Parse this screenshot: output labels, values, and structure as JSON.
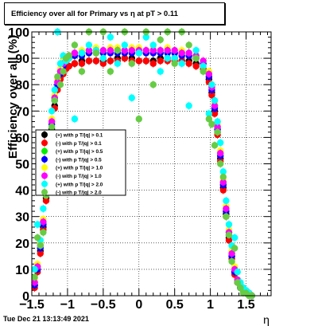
{
  "header": {
    "title": "Efficiency over all for Primary vs   η at pT > 0.11"
  },
  "footer": {
    "timestamp": "Tue Dec 21 13:13:49 2021"
  },
  "chart_data": {
    "type": "scatter",
    "title": "Efficiency over all for Primary vs   η at pT > 0.11",
    "xlabel": "η",
    "ylabel": "Efficiency over all (%)",
    "xlim": [
      -1.5,
      1.85
    ],
    "ylim": [
      0,
      100
    ],
    "x_ticks": [
      -1.5,
      -1,
      -0.5,
      0,
      0.5,
      1,
      1.5
    ],
    "x_tick_labels": [
      "−1.5",
      "−1",
      "−0.5",
      "0",
      "0.5",
      "1",
      "1.5"
    ],
    "y_ticks": [
      0,
      10,
      20,
      30,
      40,
      50,
      60,
      70,
      80,
      90,
      100
    ],
    "y_tick_labels": [
      "0",
      "10",
      "20",
      "30",
      "40",
      "50",
      "60",
      "70",
      "80",
      "90",
      "100"
    ],
    "grid": true,
    "legend_position": "left-middle",
    "series": [
      {
        "name": "(+) with p T/|q| > 0.1",
        "color": "#000000",
        "x": [
          -1.46,
          -1.42,
          -1.38,
          -1.34,
          -1.3,
          -1.26,
          -1.22,
          -1.18,
          -1.14,
          -1.1,
          -1.06,
          -1.02,
          -0.98,
          -0.9,
          -0.8,
          -0.7,
          -0.6,
          -0.5,
          -0.4,
          -0.3,
          -0.2,
          -0.1,
          0.0,
          0.1,
          0.2,
          0.3,
          0.4,
          0.5,
          0.6,
          0.7,
          0.8,
          0.9,
          0.98,
          1.02,
          1.06,
          1.1,
          1.14,
          1.18,
          1.22,
          1.26,
          1.3,
          1.34,
          1.38,
          1.42,
          1.46,
          1.5,
          1.54,
          1.58
        ],
        "y": [
          4,
          10,
          17,
          26,
          37,
          50,
          63,
          72,
          79,
          83,
          85,
          86,
          87,
          88,
          89,
          89,
          89,
          89,
          89,
          90,
          90,
          90,
          89,
          89,
          89,
          90,
          90,
          90,
          89,
          89,
          88,
          86,
          82,
          77,
          70,
          62,
          52,
          41,
          31,
          22,
          15,
          9,
          5,
          3,
          2,
          1,
          1,
          0
        ]
      },
      {
        "name": "(-) with p T/|q| > 0.1",
        "color": "#ff0000",
        "x": [
          -1.46,
          -1.42,
          -1.38,
          -1.34,
          -1.3,
          -1.26,
          -1.22,
          -1.18,
          -1.14,
          -1.1,
          -1.06,
          -1.02,
          -0.98,
          -0.9,
          -0.8,
          -0.7,
          -0.6,
          -0.5,
          -0.4,
          -0.3,
          -0.2,
          -0.1,
          0.0,
          0.1,
          0.2,
          0.3,
          0.4,
          0.5,
          0.6,
          0.7,
          0.8,
          0.9,
          0.98,
          1.02,
          1.06,
          1.1,
          1.14,
          1.18,
          1.22,
          1.26,
          1.3,
          1.34,
          1.38,
          1.42,
          1.46,
          1.5,
          1.54,
          1.58
        ],
        "y": [
          3,
          9,
          16,
          25,
          36,
          49,
          62,
          71,
          78,
          82,
          84,
          86,
          87,
          88,
          88,
          89,
          89,
          88,
          89,
          89,
          90,
          89,
          89,
          89,
          88,
          89,
          89,
          89,
          89,
          88,
          87,
          86,
          81,
          76,
          69,
          61,
          51,
          40,
          30,
          21,
          14,
          8,
          5,
          3,
          2,
          1,
          1,
          0
        ]
      },
      {
        "name": "(+) with p T/|q| > 0.5",
        "color": "#00ee00",
        "x": [
          -1.46,
          -1.42,
          -1.38,
          -1.34,
          -1.3,
          -1.26,
          -1.22,
          -1.18,
          -1.14,
          -1.1,
          -1.06,
          -1.02,
          -0.98,
          -0.9,
          -0.8,
          -0.7,
          -0.6,
          -0.5,
          -0.4,
          -0.3,
          -0.2,
          -0.1,
          0.0,
          0.1,
          0.2,
          0.3,
          0.4,
          0.5,
          0.6,
          0.7,
          0.8,
          0.9,
          0.98,
          1.02,
          1.06,
          1.1,
          1.14,
          1.18,
          1.22,
          1.26,
          1.3,
          1.34,
          1.38,
          1.42,
          1.46,
          1.5,
          1.54,
          1.58
        ],
        "y": [
          5,
          11,
          19,
          28,
          40,
          53,
          66,
          75,
          81,
          85,
          88,
          89,
          90,
          91,
          92,
          92,
          93,
          92,
          93,
          93,
          92,
          93,
          93,
          92,
          93,
          92,
          93,
          92,
          92,
          91,
          90,
          88,
          84,
          79,
          72,
          64,
          54,
          43,
          33,
          24,
          16,
          10,
          6,
          4,
          2,
          1,
          1,
          0
        ]
      },
      {
        "name": "(-) with p T/|q| > 0.5",
        "color": "#0000ff",
        "x": [
          -1.46,
          -1.42,
          -1.38,
          -1.34,
          -1.3,
          -1.26,
          -1.22,
          -1.18,
          -1.14,
          -1.1,
          -1.06,
          -1.02,
          -0.98,
          -0.9,
          -0.8,
          -0.7,
          -0.6,
          -0.5,
          -0.4,
          -0.3,
          -0.2,
          -0.1,
          0.0,
          0.1,
          0.2,
          0.3,
          0.4,
          0.5,
          0.6,
          0.7,
          0.8,
          0.9,
          0.98,
          1.02,
          1.06,
          1.1,
          1.14,
          1.18,
          1.22,
          1.26,
          1.3,
          1.34,
          1.38,
          1.42,
          1.46,
          1.5,
          1.54,
          1.58
        ],
        "y": [
          4,
          10,
          18,
          27,
          39,
          52,
          65,
          74,
          80,
          84,
          87,
          89,
          90,
          91,
          91,
          92,
          92,
          92,
          92,
          92,
          92,
          92,
          92,
          92,
          92,
          92,
          92,
          92,
          91,
          91,
          90,
          88,
          83,
          78,
          71,
          63,
          53,
          42,
          32,
          23,
          15,
          9,
          6,
          3,
          2,
          1,
          1,
          0
        ]
      },
      {
        "name": "(+) with p T/|q| > 1.0",
        "color": "#ffff00",
        "x": [
          -1.46,
          -1.42,
          -1.38,
          -1.34,
          -1.3,
          -1.26,
          -1.22,
          -1.18,
          -1.14,
          -1.1,
          -1.06,
          -1.02,
          -0.98,
          -0.9,
          -0.8,
          -0.7,
          -0.6,
          -0.5,
          -0.4,
          -0.3,
          -0.2,
          -0.1,
          0.0,
          0.1,
          0.2,
          0.3,
          0.4,
          0.5,
          0.6,
          0.7,
          0.8,
          0.9,
          0.98,
          1.02,
          1.06,
          1.1,
          1.14,
          1.18,
          1.22,
          1.26,
          1.3,
          1.34,
          1.38,
          1.42,
          1.46,
          1.5,
          1.54,
          1.58
        ],
        "y": [
          6,
          12,
          20,
          29,
          41,
          54,
          67,
          76,
          82,
          86,
          89,
          90,
          91,
          92,
          93,
          93,
          94,
          93,
          94,
          94,
          93,
          94,
          94,
          93,
          94,
          93,
          94,
          93,
          93,
          92,
          91,
          89,
          85,
          80,
          73,
          65,
          55,
          44,
          34,
          25,
          17,
          11,
          6,
          4,
          2,
          1,
          1,
          0
        ]
      },
      {
        "name": "(-) with p T/|q| > 1.0",
        "color": "#ff00ff",
        "x": [
          -1.46,
          -1.42,
          -1.38,
          -1.34,
          -1.3,
          -1.26,
          -1.22,
          -1.18,
          -1.14,
          -1.1,
          -1.06,
          -1.02,
          -0.98,
          -0.9,
          -0.8,
          -0.7,
          -0.6,
          -0.5,
          -0.4,
          -0.3,
          -0.2,
          -0.1,
          0.0,
          0.1,
          0.2,
          0.3,
          0.4,
          0.5,
          0.6,
          0.7,
          0.8,
          0.9,
          0.98,
          1.02,
          1.06,
          1.1,
          1.14,
          1.18,
          1.22,
          1.26,
          1.3,
          1.34,
          1.38,
          1.42,
          1.46,
          1.5,
          1.54,
          1.58
        ],
        "y": [
          5,
          11,
          19,
          28,
          40,
          53,
          66,
          75,
          81,
          85,
          88,
          90,
          91,
          92,
          92,
          93,
          93,
          93,
          93,
          93,
          93,
          93,
          93,
          93,
          93,
          93,
          93,
          93,
          92,
          92,
          91,
          89,
          84,
          79,
          72,
          64,
          54,
          43,
          33,
          24,
          16,
          10,
          6,
          4,
          2,
          1,
          1,
          0
        ]
      },
      {
        "name": "(+) with p T/|q| > 2.0",
        "color": "#00ffff",
        "x": [
          -1.46,
          -1.42,
          -1.38,
          -1.34,
          -1.3,
          -1.26,
          -1.22,
          -1.18,
          -1.14,
          -1.1,
          -1.06,
          -1.02,
          -0.98,
          -0.9,
          -0.8,
          -0.7,
          -0.6,
          -0.5,
          -0.4,
          -0.3,
          -0.2,
          -0.1,
          0.0,
          0.1,
          0.2,
          0.3,
          0.4,
          0.5,
          0.6,
          0.7,
          0.8,
          0.9,
          0.98,
          1.02,
          1.06,
          1.1,
          1.14,
          1.18,
          1.22,
          1.26,
          1.3,
          1.34,
          1.38,
          1.42,
          1.46,
          1.5,
          1.54,
          1.58
        ],
        "y": [
          10,
          27,
          21,
          33,
          44,
          59,
          70,
          78,
          100,
          88,
          91,
          89,
          90,
          67,
          92,
          95,
          93,
          90,
          98,
          88,
          95,
          75,
          92,
          98,
          95,
          85,
          90,
          90,
          88,
          72,
          93,
          87,
          69,
          80,
          74,
          66,
          58,
          47,
          36,
          27,
          19,
          22,
          9,
          5,
          3,
          2,
          1,
          0
        ]
      },
      {
        "name": "(-) with p T/|q| > 2.0",
        "color": "#66cc44",
        "x": [
          -1.46,
          -1.42,
          -1.38,
          -1.34,
          -1.3,
          -1.26,
          -1.22,
          -1.18,
          -1.14,
          -1.1,
          -1.06,
          -1.02,
          -0.98,
          -0.9,
          -0.8,
          -0.7,
          -0.6,
          -0.5,
          -0.4,
          -0.3,
          -0.2,
          -0.1,
          0.0,
          0.1,
          0.2,
          0.3,
          0.4,
          0.5,
          0.6,
          0.7,
          0.8,
          0.9,
          0.98,
          1.02,
          1.06,
          1.1,
          1.14,
          1.18,
          1.22,
          1.26,
          1.3,
          1.34,
          1.38,
          1.42,
          1.46,
          1.5,
          1.54,
          1.58
        ],
        "y": [
          7,
          22,
          19,
          24,
          38,
          50,
          64,
          74,
          83,
          80,
          85,
          90,
          91,
          95,
          85,
          100,
          92,
          100,
          85,
          93,
          100,
          88,
          67,
          100,
          80,
          97,
          100,
          88,
          100,
          95,
          90,
          85,
          67,
          65,
          57,
          62,
          50,
          45,
          30,
          23,
          13,
          18,
          5,
          3,
          1,
          1,
          0,
          0
        ]
      }
    ]
  }
}
